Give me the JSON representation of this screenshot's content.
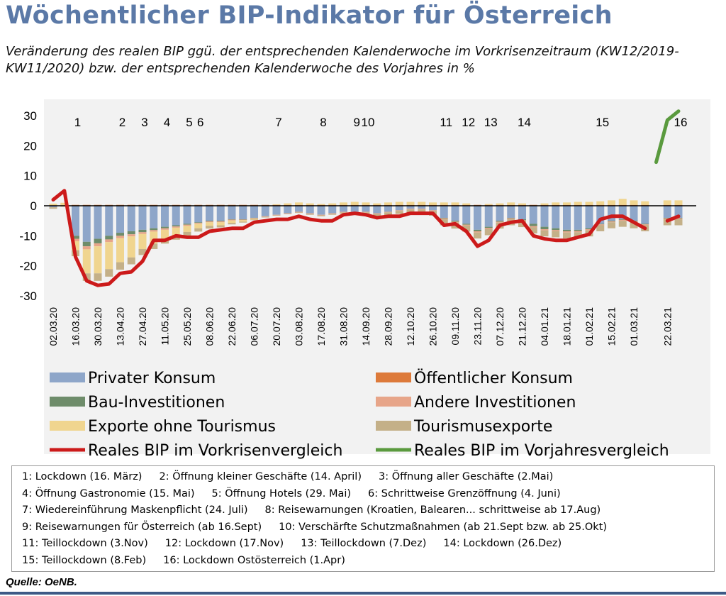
{
  "title": "Wöchentlicher BIP-Indikator für Österreich",
  "subtitle": "Veränderung des realen BIP ggü. der entsprechenden Kalenderwoche im Vorkrisenzeitraum (KW12/2019-KW11/2020) bzw. der entsprechenden Kalenderwoche des Vorjahres in %",
  "source": "Quelle: OeNB.",
  "chart_data": {
    "type": "bar",
    "stacked": true,
    "ylim": [
      -30,
      30
    ],
    "yticks": [
      30,
      20,
      10,
      0,
      -10,
      -20,
      -30
    ],
    "grid": false,
    "legend_position": "bottom",
    "categories": [
      "02.03.20",
      "09.03.20",
      "16.03.20",
      "23.03.20",
      "30.03.20",
      "06.04.20",
      "13.04.20",
      "20.04.20",
      "27.04.20",
      "04.05.20",
      "11.05.20",
      "18.05.20",
      "25.05.20",
      "01.06.20",
      "08.06.20",
      "15.06.20",
      "22.06.20",
      "29.06.20",
      "06.07.20",
      "13.07.20",
      "20.07.20",
      "27.07.20",
      "03.08.20",
      "10.08.20",
      "17.08.20",
      "24.08.20",
      "31.08.20",
      "07.09.20",
      "14.09.20",
      "21.09.20",
      "28.09.20",
      "05.10.20",
      "12.10.20",
      "19.10.20",
      "26.10.20",
      "02.11.20",
      "09.11.20",
      "16.11.20",
      "23.11.20",
      "30.11.20",
      "07.12.20",
      "14.12.20",
      "21.12.20",
      "28.12.20",
      "04.01.21",
      "11.01.21",
      "18.01.21",
      "25.01.21",
      "01.02.21",
      "08.02.21",
      "15.02.21",
      "22.02.21",
      "01.03.21",
      "08.03.21",
      "15.03.21",
      "22.03.21",
      "29.03.21"
    ],
    "xtick_labels": [
      "02.03.20",
      "16.03.20",
      "30.03.20",
      "13.04.20",
      "27.04.20",
      "11.05.20",
      "25.05.20",
      "08.06.20",
      "22.06.20",
      "06.07.20",
      "20.07.20",
      "03.08.20",
      "17.08.20",
      "31.08.20",
      "14.09.20",
      "28.09.20",
      "12.10.20",
      "26.10.20",
      "09.11.20",
      "23.11.20",
      "07.12.20",
      "21.12.20",
      "04.01.21",
      "18.01.21",
      "01.02.21",
      "15.02.21",
      "01.03.21",
      "22.03.21"
    ],
    "bar_series": [
      {
        "name": "Privater Konsum",
        "color": "#8ea6c9",
        "values": [
          -0.5,
          0,
          -10,
          -12,
          -11,
          -10,
          -9,
          -8.5,
          -8,
          -7.5,
          -7,
          -6.5,
          -6,
          -5.5,
          -5,
          -5,
          -4.5,
          -4.5,
          -4,
          -3.5,
          -3,
          -2.5,
          -2,
          -2.5,
          -3,
          -2.5,
          -2,
          -2,
          -2,
          -2.5,
          -2,
          -1.5,
          -1,
          -1,
          -1.5,
          -4,
          -5,
          -6,
          -8,
          -7,
          -5,
          -4,
          -4.5,
          -6,
          -7,
          -7.5,
          -8,
          -8,
          -7.5,
          -6,
          -5,
          -4.5,
          -5,
          -6,
          null,
          -4,
          -4
        ]
      },
      {
        "name": "Öffentlicher Konsum",
        "color": "#dd7a3a",
        "values": [
          0.2,
          0.2,
          0.3,
          0.3,
          0.3,
          0.3,
          0.3,
          0.3,
          0.3,
          0.3,
          0.3,
          0.3,
          0.3,
          0.3,
          0.3,
          0.3,
          0.3,
          0.3,
          0.3,
          0.3,
          0.3,
          0.3,
          0.3,
          0.3,
          0.3,
          0.3,
          0.3,
          0.3,
          0.3,
          0.3,
          0.3,
          0.3,
          0.3,
          0.3,
          0.3,
          0.3,
          0.3,
          0.3,
          0.3,
          0.3,
          0.3,
          0.3,
          0.3,
          0.3,
          0.3,
          0.3,
          0.3,
          0.3,
          0.3,
          0.3,
          0.3,
          0.3,
          0.3,
          0.3,
          null,
          0.3,
          0.3
        ]
      },
      {
        "name": "Bau-Investitionen",
        "color": "#6e8c6a",
        "values": [
          0,
          0,
          -1,
          -1.5,
          -1.5,
          -1.2,
          -1,
          -1,
          -0.8,
          -0.6,
          -0.5,
          -0.4,
          -0.3,
          -0.2,
          -0.2,
          -0.2,
          -0.1,
          -0.1,
          -0.1,
          0,
          0,
          0,
          0,
          0,
          0,
          0,
          0,
          0,
          0,
          0,
          0,
          0,
          0,
          0,
          0,
          -0.2,
          -0.3,
          -0.3,
          -0.5,
          -0.4,
          -0.3,
          -0.2,
          -0.3,
          -0.8,
          -0.8,
          -0.6,
          -0.5,
          -0.4,
          -0.3,
          -0.2,
          -0.2,
          -0.2,
          -0.2,
          -0.2,
          null,
          -0.2,
          -0.2
        ]
      },
      {
        "name": "Andere Investitionen",
        "color": "#e7a589",
        "values": [
          0,
          0,
          -0.8,
          -1,
          -1,
          -0.9,
          -0.8,
          -0.7,
          -0.6,
          -0.5,
          -0.5,
          -0.4,
          -0.4,
          -0.3,
          -0.3,
          -0.3,
          -0.3,
          -0.2,
          -0.2,
          -0.2,
          -0.2,
          -0.2,
          -0.2,
          -0.2,
          -0.2,
          -0.2,
          -0.2,
          -0.2,
          -0.2,
          -0.2,
          -0.2,
          -0.2,
          -0.2,
          -0.2,
          -0.2,
          -0.3,
          -0.3,
          -0.3,
          -0.4,
          -0.4,
          -0.3,
          -0.3,
          -0.3,
          -0.4,
          -0.4,
          -0.4,
          -0.4,
          -0.4,
          -0.4,
          -0.3,
          -0.3,
          -0.3,
          -0.3,
          -0.3,
          null,
          -0.3,
          -0.3
        ]
      },
      {
        "name": "Exporte ohne Tourismus",
        "color": "#f0d58f",
        "values": [
          0.5,
          0.8,
          -3,
          -8,
          -9,
          -9,
          -8,
          -7,
          -5,
          -4,
          -3,
          -2.5,
          -2,
          -1.5,
          -1.2,
          -1,
          -0.8,
          -0.5,
          -0.3,
          0,
          0.2,
          0.5,
          0.8,
          0.5,
          0.3,
          0.5,
          0.8,
          1,
          0.8,
          0.5,
          0.8,
          1,
          1,
          1,
          0.8,
          0.8,
          0.8,
          0.5,
          0,
          0.3,
          0.5,
          0.8,
          0.5,
          0,
          0.5,
          0.8,
          0.8,
          1,
          1,
          1.2,
          1.5,
          2,
          1.5,
          1.2,
          null,
          1.5,
          1.5
        ]
      },
      {
        "name": "Tourismusexporte",
        "color": "#c4b088",
        "values": [
          -0.5,
          -0.3,
          -2,
          -2.5,
          -2.5,
          -2.5,
          -2.5,
          -2.3,
          -2,
          -1.8,
          -1.6,
          -1.5,
          -1.3,
          -1.1,
          -0.9,
          -0.7,
          -0.5,
          -0.3,
          -0.2,
          -0.2,
          -0.1,
          -0.1,
          -0.2,
          -0.3,
          -0.3,
          -0.3,
          -0.4,
          -0.5,
          -0.6,
          -0.8,
          -1,
          -1,
          -1.2,
          -1.4,
          -1.6,
          -2,
          -2,
          -2,
          -2,
          -2,
          -2,
          -2,
          -2,
          -2,
          -2,
          -2,
          -2,
          -2,
          -2,
          -2,
          -2,
          -2,
          -2,
          -2,
          null,
          -2,
          -2
        ]
      }
    ],
    "line_series": [
      {
        "name": "Reales BIP im Vorkrisenvergleich",
        "color": "#cc1a1a",
        "values": [
          2,
          5,
          -17,
          -25,
          -26.5,
          -26,
          -22.5,
          -22,
          -18.5,
          -11.5,
          -11.5,
          -10,
          -10.5,
          -10.5,
          -8.5,
          -8,
          -7.5,
          -7.5,
          -5.5,
          -5,
          -4.5,
          -4.5,
          -3.5,
          -4.5,
          -5,
          -5,
          -3,
          -2.5,
          -3,
          -4,
          -3.5,
          -3.5,
          -2.5,
          -2.5,
          -2.5,
          -6.5,
          -6,
          -8.5,
          -13.5,
          -11.5,
          -6.5,
          -5.5,
          -5,
          -10,
          -11,
          -11.5,
          -11.5,
          -10.5,
          -9.5,
          -4.5,
          -3.5,
          -3.5,
          -5.5,
          -7.5,
          null,
          -5,
          -3.5
        ]
      },
      {
        "name": "Reales BIP im Vorjahresvergleich",
        "color": "#5a9a3e",
        "values": [
          null,
          null,
          null,
          null,
          null,
          null,
          null,
          null,
          null,
          null,
          null,
          null,
          null,
          null,
          null,
          null,
          null,
          null,
          null,
          null,
          null,
          null,
          null,
          null,
          null,
          null,
          null,
          null,
          null,
          null,
          null,
          null,
          null,
          null,
          null,
          null,
          null,
          null,
          null,
          null,
          null,
          null,
          null,
          null,
          null,
          null,
          null,
          null,
          null,
          null,
          null,
          null,
          null,
          null,
          14.5,
          28.5,
          31.5
        ]
      }
    ],
    "annotations": [
      {
        "label": "1",
        "week": "16.03.20"
      },
      {
        "label": "2",
        "week": "13.04.20"
      },
      {
        "label": "3",
        "week": "27.04.20"
      },
      {
        "label": "4",
        "week": "11.05.20"
      },
      {
        "label": "5",
        "week": "25.05.20"
      },
      {
        "label": "6",
        "week": "01.06.20"
      },
      {
        "label": "7",
        "week": "20.07.20"
      },
      {
        "label": "8",
        "week": "17.08.20"
      },
      {
        "label": "9",
        "week": "07.09.20"
      },
      {
        "label": "10",
        "week": "14.09.20"
      },
      {
        "label": "11",
        "week": "02.11.20"
      },
      {
        "label": "12",
        "week": "16.11.20"
      },
      {
        "label": "13",
        "week": "30.11.20"
      },
      {
        "label": "14",
        "week": "21.12.20"
      },
      {
        "label": "15",
        "week": "08.02.21"
      },
      {
        "label": "16",
        "week": "29.03.21"
      }
    ]
  },
  "legend": [
    {
      "label": "Privater Konsum",
      "color": "#8ea6c9",
      "kind": "bar"
    },
    {
      "label": "Öffentlicher Konsum",
      "color": "#dd7a3a",
      "kind": "bar"
    },
    {
      "label": "Bau-Investitionen",
      "color": "#6e8c6a",
      "kind": "bar"
    },
    {
      "label": "Andere Investitionen",
      "color": "#e7a589",
      "kind": "bar"
    },
    {
      "label": "Exporte ohne Tourismus",
      "color": "#f0d58f",
      "kind": "bar"
    },
    {
      "label": "Tourismusexporte",
      "color": "#c4b088",
      "kind": "bar"
    },
    {
      "label": "Reales BIP im Vorkrisenvergleich",
      "color": "#cc1a1a",
      "kind": "line"
    },
    {
      "label": "Reales BIP im Vorjahresvergleich",
      "color": "#5a9a3e",
      "kind": "line"
    }
  ],
  "notes": [
    [
      "1:  Lockdown (16. März)",
      "2:  Öffnung kleiner Geschäfte (14. April)",
      "3:  Öffnung aller Geschäfte (2.Mai)"
    ],
    [
      "4:  Öffnung Gastronomie (15. Mai)",
      "5:  Öffnung Hotels (29. Mai)",
      "6:  Schrittweise Grenzöffnung (4. Juni)"
    ],
    [
      "7:  Wiedereinführung Maskenpflicht (24. Juli)",
      "8:  Reisewarnungen (Kroatien, Balearen... schrittweise ab 17.Aug)"
    ],
    [
      "9:  Reisewarnungen für Österreich (ab 16.Sept)",
      "10:  Verschärfte Schutzmaßnahmen (ab 21.Sept bzw. ab 25.Okt)"
    ],
    [
      "11: Teillockdown (3.Nov)",
      "12: Lockdown (17.Nov)",
      "13: Teillockdown (7.Dez)",
      "14: Lockdown (26.Dez)"
    ],
    [
      "15: Teillockdown (8.Feb)",
      "16: Lockdown Ostösterreich (1.Apr)"
    ]
  ]
}
